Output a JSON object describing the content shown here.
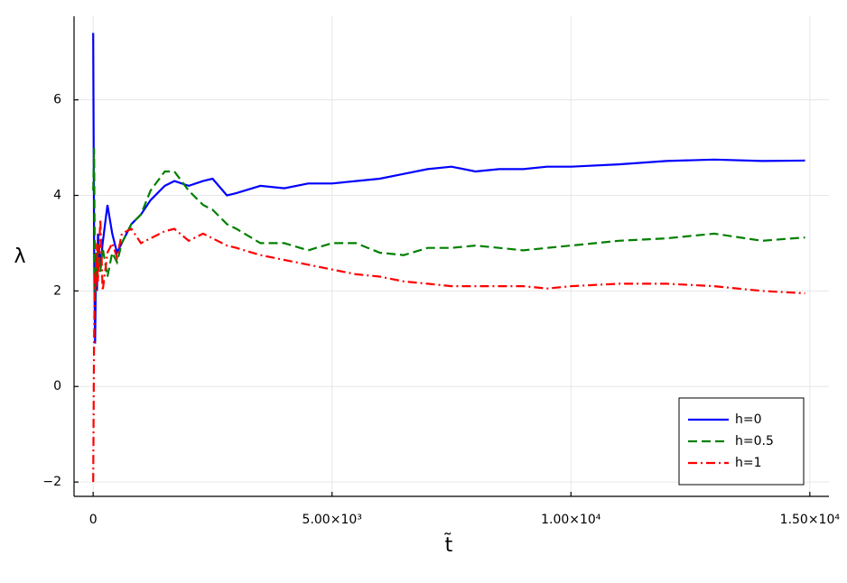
{
  "chart_data": {
    "type": "line",
    "xlabel": "t̃",
    "ylabel": "λ",
    "x": [
      0,
      20,
      40,
      60,
      80,
      100,
      150,
      200,
      300,
      400,
      500,
      600,
      800,
      1000,
      1200,
      1500,
      1700,
      2000,
      2300,
      2500,
      2800,
      3000,
      3500,
      4000,
      4500,
      5000,
      5500,
      6000,
      6500,
      7000,
      7500,
      8000,
      8500,
      9000,
      9500,
      10000,
      11000,
      12000,
      13000,
      14000,
      14900
    ],
    "series": [
      {
        "name": "h=0",
        "color": "#0000ff",
        "line_style": "solid",
        "values": [
          7.4,
          3.0,
          0.9,
          2.5,
          2.0,
          3.2,
          2.5,
          3.0,
          3.8,
          3.2,
          2.8,
          3.0,
          3.4,
          3.6,
          3.9,
          4.2,
          4.3,
          4.2,
          4.3,
          4.35,
          4.0,
          4.05,
          4.2,
          4.15,
          4.25,
          4.25,
          4.3,
          4.35,
          4.45,
          4.55,
          4.6,
          4.5,
          4.55,
          4.55,
          4.6,
          4.6,
          4.65,
          4.72,
          4.75,
          4.72,
          4.73
        ]
      },
      {
        "name": "h=0.5",
        "color": "#008000",
        "line_style": "dashed",
        "values": [
          4.1,
          5.0,
          1.8,
          2.8,
          2.2,
          3.0,
          2.4,
          2.9,
          2.3,
          2.8,
          2.6,
          3.0,
          3.4,
          3.6,
          4.1,
          4.5,
          4.5,
          4.1,
          3.8,
          3.7,
          3.4,
          3.3,
          3.0,
          3.0,
          2.85,
          3.0,
          3.0,
          2.8,
          2.75,
          2.9,
          2.9,
          2.95,
          2.9,
          2.85,
          2.9,
          2.95,
          3.05,
          3.1,
          3.2,
          3.05,
          3.12
        ]
      },
      {
        "name": "h=1",
        "color": "#ff0000",
        "line_style": "dashdot",
        "values": [
          -2.0,
          1.0,
          2.4,
          2.0,
          3.0,
          2.2,
          3.5,
          2.0,
          2.8,
          3.0,
          2.7,
          3.2,
          3.3,
          3.0,
          3.1,
          3.25,
          3.3,
          3.05,
          3.2,
          3.1,
          2.95,
          2.9,
          2.75,
          2.65,
          2.55,
          2.45,
          2.35,
          2.3,
          2.2,
          2.15,
          2.1,
          2.1,
          2.1,
          2.1,
          2.05,
          2.1,
          2.15,
          2.15,
          2.1,
          2.0,
          1.95
        ]
      }
    ],
    "xlim": [
      -400,
      15400
    ],
    "ylim": [
      -2.3,
      7.75
    ],
    "xticks": [
      0,
      {
        "value": 5000,
        "label": "5.00×10³"
      },
      {
        "value": 10000,
        "label": "1.00×10⁴"
      },
      {
        "value": 15000,
        "label": "1.50×10⁴"
      }
    ],
    "yticks": [
      {
        "value": -2,
        "label": "−2"
      },
      0,
      2,
      4,
      6
    ],
    "grid": true,
    "legend": "bottom-right"
  }
}
